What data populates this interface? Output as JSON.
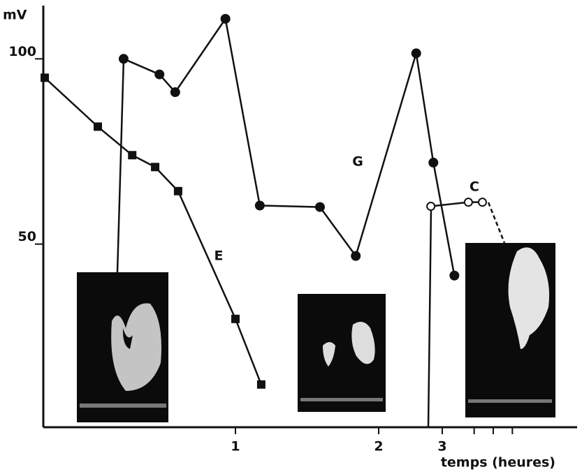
{
  "chart_data": {
    "type": "line",
    "ylabel": "mV",
    "xlabel": "temps (heures)",
    "xlim": [
      -0.34,
      5.05
    ],
    "ylim": [
      0,
      114
    ],
    "xticks": [
      1,
      2,
      3
    ],
    "yticks": [
      50,
      100
    ],
    "xminorticks": [
      3.5,
      3.8,
      4.1
    ],
    "series": [
      {
        "name": "G",
        "color": "#111111",
        "marker": "circle",
        "x": [
          0.22,
          0.47,
          0.58,
          0.93,
          1.17,
          1.59,
          1.84,
          2.59,
          2.86,
          3.19
        ],
        "values": [
          100,
          95.8,
          91,
          110.8,
          60.4,
          60,
          46.8,
          101.5,
          72,
          41.5
        ]
      },
      {
        "name": "E",
        "color": "#111111",
        "marker": "square",
        "x": [
          -0.33,
          0.04,
          0.28,
          0.44,
          0.6,
          1.0,
          1.18
        ],
        "values": [
          94.9,
          81.7,
          74,
          70.8,
          64.3,
          29.8,
          12.1
        ]
      },
      {
        "name": "C",
        "color": "#111111",
        "marker": "open-circle",
        "x": [
          2.82,
          3.41,
          3.63
        ],
        "values": [
          60.2,
          61.3,
          61.3
        ]
      }
    ]
  }
}
